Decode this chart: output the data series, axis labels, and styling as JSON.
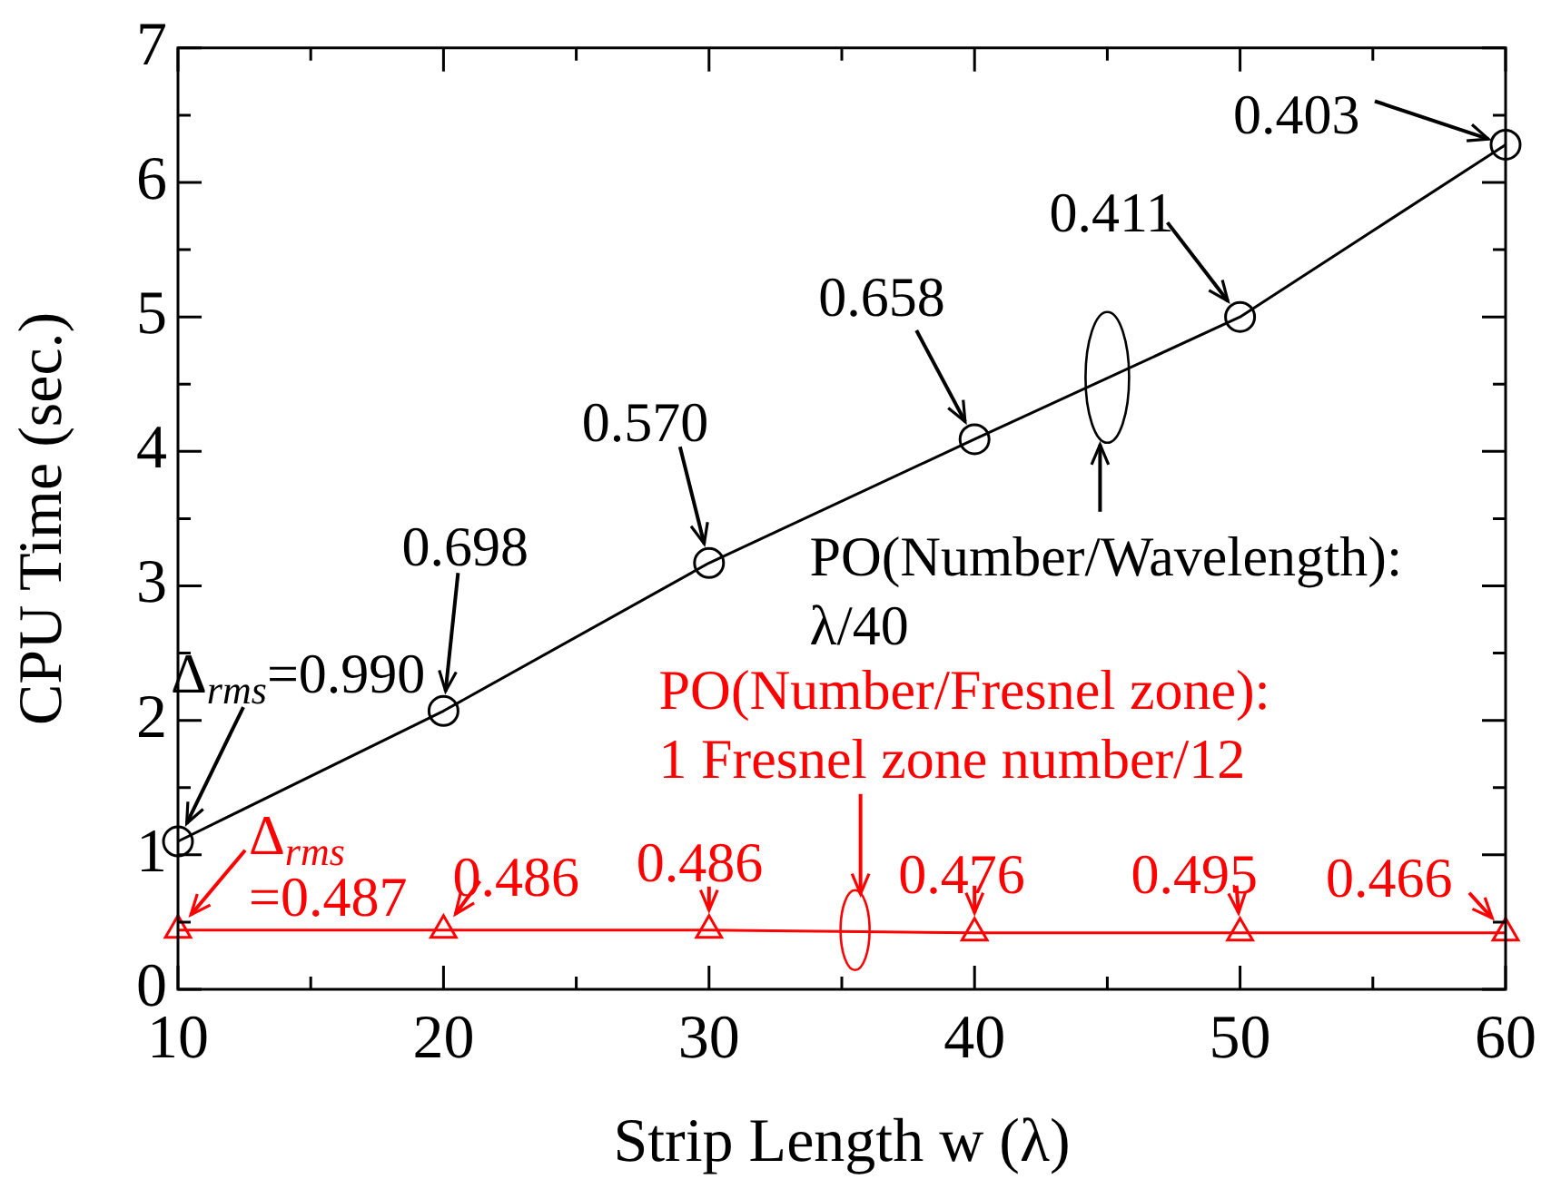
{
  "chart_data": {
    "type": "line",
    "xlabel": "Strip Length w (λ)",
    "ylabel": "CPU Time (sec.)",
    "x": [
      10,
      20,
      30,
      40,
      50,
      60
    ],
    "series": [
      {
        "color": "#000000",
        "marker": "circle",
        "values": [
          1.1,
          2.07,
          3.17,
          4.09,
          5.0,
          6.28
        ]
      },
      {
        "color": "#ff0000",
        "marker": "triangle",
        "values": [
          0.44,
          0.44,
          0.44,
          0.42,
          0.42,
          0.42
        ]
      }
    ],
    "xlim": [
      10,
      60
    ],
    "xticks": [
      10,
      {
        "value": 15,
        "label": null
      },
      20,
      {
        "value": 25,
        "label": null
      },
      30,
      {
        "value": 35,
        "label": null
      },
      40,
      {
        "value": 45,
        "label": null
      },
      50,
      {
        "value": 55,
        "label": null
      },
      60
    ],
    "ylim": [
      0,
      7
    ],
    "yticks": [
      0,
      {
        "value": 0.5,
        "label": null
      },
      1,
      {
        "value": 1.5,
        "label": null
      },
      2,
      {
        "value": 2.5,
        "label": null
      },
      3,
      {
        "value": 3.5,
        "label": null
      },
      4,
      {
        "value": 4.5,
        "label": null
      },
      5,
      {
        "value": 5.5,
        "label": null
      },
      6,
      {
        "value": 6.5,
        "label": null
      },
      7
    ],
    "grid": false,
    "legend": false,
    "line_style": "solid",
    "annotations": [
      {
        "text": "Δ$_{rms}$=0.990",
        "x": 10,
        "y": 1.1
      },
      {
        "text": "0.698",
        "x": 20,
        "y": 2.07
      },
      {
        "text": "0.570",
        "x": 30,
        "y": 3.17
      },
      {
        "text": "0.658",
        "x": 40,
        "y": 4.09
      },
      {
        "text": "0.411",
        "x": 50,
        "y": 5.0
      },
      {
        "text": "0.403",
        "x": 60,
        "y": 6.28
      },
      {
        "text": "PO(Number/Wavelength):\nλ/40",
        "x": 45,
        "y": 4.55
      },
      {
        "text": "Δ$_{rms}$\n=0.487",
        "x": 10,
        "y": 0.44
      },
      {
        "text": "0.486",
        "x": 20,
        "y": 0.44
      },
      {
        "text": "0.486",
        "x": 30,
        "y": 0.44
      },
      {
        "text": "PO(Number/Fresnel zone):\n1 Fresnel zone number/12",
        "x": 35.5,
        "y": 0.44
      },
      {
        "text": "0.476",
        "x": 40,
        "y": 0.42
      },
      {
        "text": "0.495",
        "x": 50,
        "y": 0.42
      },
      {
        "text": "0.466",
        "x": 60,
        "y": 0.42
      }
    ]
  }
}
